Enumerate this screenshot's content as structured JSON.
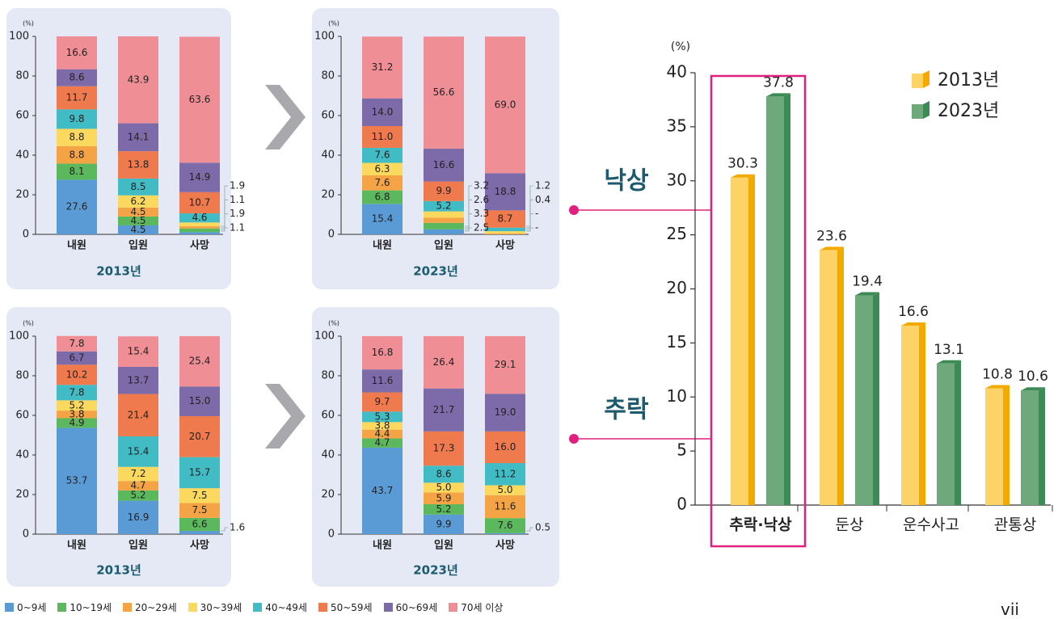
{
  "colors": {
    "age_groups": [
      "#5b9bd5",
      "#5cb85c",
      "#f5a445",
      "#fbd85e",
      "#42bcc4",
      "#ef7a4d",
      "#7d6aa8",
      "#f08e96"
    ],
    "bar_2013": "#fdd267",
    "bar_2013_side": "#f4a900",
    "bar_2023": "#6ea97c",
    "bar_2023_side": "#3c8a55",
    "highlight": "#e0207d",
    "panel_bg": "#e4e9f5"
  },
  "legend": {
    "items": [
      "0~9세",
      "10~19세",
      "20~29세",
      "30~39세",
      "40~49세",
      "50~59세",
      "60~69세",
      "70세 이상"
    ]
  },
  "page_number": "vii",
  "connector_labels": {
    "fall_same_level": "낙상",
    "fall_height": "추락"
  },
  "chart_data": [
    {
      "type": "bar",
      "stacked": true,
      "title": "2013년",
      "ylabel": "(%)",
      "ylim": [
        0,
        100
      ],
      "yticks": [
        0,
        20,
        40,
        60,
        80,
        100
      ],
      "categories": [
        "내원",
        "입원",
        "사망"
      ],
      "series": [
        {
          "name": "0~9세",
          "values": [
            27.6,
            4.5,
            1.1
          ]
        },
        {
          "name": "10~19세",
          "values": [
            8.1,
            4.5,
            1.9
          ]
        },
        {
          "name": "20~29세",
          "values": [
            8.8,
            4.5,
            1.1
          ]
        },
        {
          "name": "30~39세",
          "values": [
            8.8,
            6.2,
            1.9
          ]
        },
        {
          "name": "40~49세",
          "values": [
            9.8,
            8.5,
            4.6
          ]
        },
        {
          "name": "50~59세",
          "values": [
            11.7,
            13.8,
            10.7
          ]
        },
        {
          "name": "60~69세",
          "values": [
            8.6,
            14.1,
            14.9
          ]
        },
        {
          "name": "70세 이상",
          "values": [
            16.6,
            43.9,
            63.6
          ]
        }
      ],
      "callouts": [
        {
          "category": "사망",
          "labels": [
            "1.9",
            "1.1",
            "1.9",
            "1.1"
          ]
        }
      ]
    },
    {
      "type": "bar",
      "stacked": true,
      "title": "2023년",
      "ylabel": "(%)",
      "ylim": [
        0,
        100
      ],
      "yticks": [
        0,
        20,
        40,
        60,
        80,
        100
      ],
      "categories": [
        "내원",
        "입원",
        "사망"
      ],
      "series": [
        {
          "name": "0~9세",
          "values": [
            15.4,
            2.5,
            0
          ]
        },
        {
          "name": "10~19세",
          "values": [
            6.8,
            3.3,
            0
          ]
        },
        {
          "name": "20~29세",
          "values": [
            7.6,
            2.6,
            0.4
          ]
        },
        {
          "name": "30~39세",
          "values": [
            6.3,
            3.2,
            1.2
          ]
        },
        {
          "name": "40~49세",
          "values": [
            7.6,
            5.2,
            1.8
          ]
        },
        {
          "name": "50~59세",
          "values": [
            11.0,
            9.9,
            8.7
          ]
        },
        {
          "name": "60~69세",
          "values": [
            14.0,
            16.6,
            18.8
          ]
        },
        {
          "name": "70세 이상",
          "values": [
            31.2,
            56.6,
            69.0
          ]
        }
      ],
      "callouts": [
        {
          "category": "입원",
          "labels": [
            "3.2",
            "2.6",
            "3.3",
            "2.5"
          ]
        },
        {
          "category": "사망",
          "labels": [
            "1.2",
            "0.4",
            "-",
            "-"
          ]
        }
      ]
    },
    {
      "type": "bar",
      "stacked": true,
      "title": "2013년",
      "ylabel": "(%)",
      "ylim": [
        0,
        100
      ],
      "yticks": [
        0,
        20,
        40,
        60,
        80,
        100
      ],
      "categories": [
        "내원",
        "입원",
        "사망"
      ],
      "series": [
        {
          "name": "0~9세",
          "values": [
            53.7,
            16.9,
            1.6
          ]
        },
        {
          "name": "10~19세",
          "values": [
            4.9,
            5.2,
            6.6
          ]
        },
        {
          "name": "20~29세",
          "values": [
            3.8,
            4.7,
            7.5
          ]
        },
        {
          "name": "30~39세",
          "values": [
            5.2,
            7.2,
            7.5
          ]
        },
        {
          "name": "40~49세",
          "values": [
            7.8,
            15.4,
            15.7
          ]
        },
        {
          "name": "50~59세",
          "values": [
            10.2,
            21.4,
            20.7
          ]
        },
        {
          "name": "60~69세",
          "values": [
            6.7,
            13.7,
            15.0
          ]
        },
        {
          "name": "70세 이상",
          "values": [
            7.8,
            15.4,
            25.4
          ]
        }
      ],
      "callouts": [
        {
          "category": "사망",
          "labels": [
            "1.6"
          ]
        }
      ]
    },
    {
      "type": "bar",
      "stacked": true,
      "title": "2023년",
      "ylabel": "(%)",
      "ylim": [
        0,
        100
      ],
      "yticks": [
        0,
        20,
        40,
        60,
        80,
        100
      ],
      "categories": [
        "내원",
        "입원",
        "사망"
      ],
      "series": [
        {
          "name": "0~9세",
          "values": [
            43.7,
            9.9,
            0.5
          ]
        },
        {
          "name": "10~19세",
          "values": [
            4.7,
            5.2,
            7.6
          ]
        },
        {
          "name": "20~29세",
          "values": [
            4.4,
            5.9,
            11.6
          ]
        },
        {
          "name": "30~39세",
          "values": [
            3.8,
            5.0,
            5.0
          ]
        },
        {
          "name": "40~49세",
          "values": [
            5.3,
            8.6,
            11.2
          ]
        },
        {
          "name": "50~59세",
          "values": [
            9.7,
            17.3,
            16.0
          ]
        },
        {
          "name": "60~69세",
          "values": [
            11.6,
            21.7,
            19.0
          ]
        },
        {
          "name": "70세 이상",
          "values": [
            16.8,
            26.4,
            29.1
          ]
        }
      ],
      "callouts": [
        {
          "category": "사망",
          "labels": [
            "0.5"
          ]
        }
      ]
    },
    {
      "type": "bar",
      "ylabel": "(%)",
      "ylim": [
        0,
        40
      ],
      "yticks": [
        0,
        5,
        10,
        15,
        20,
        25,
        30,
        35,
        40
      ],
      "categories": [
        "추락·낙상",
        "둔상",
        "운수사고",
        "관통상"
      ],
      "highlighted_category": "추락·낙상",
      "series": [
        {
          "name": "2013년",
          "values": [
            30.3,
            23.6,
            16.6,
            10.8
          ]
        },
        {
          "name": "2023년",
          "values": [
            37.8,
            19.4,
            13.1,
            10.6
          ]
        }
      ],
      "legend_position": "top-right"
    }
  ]
}
